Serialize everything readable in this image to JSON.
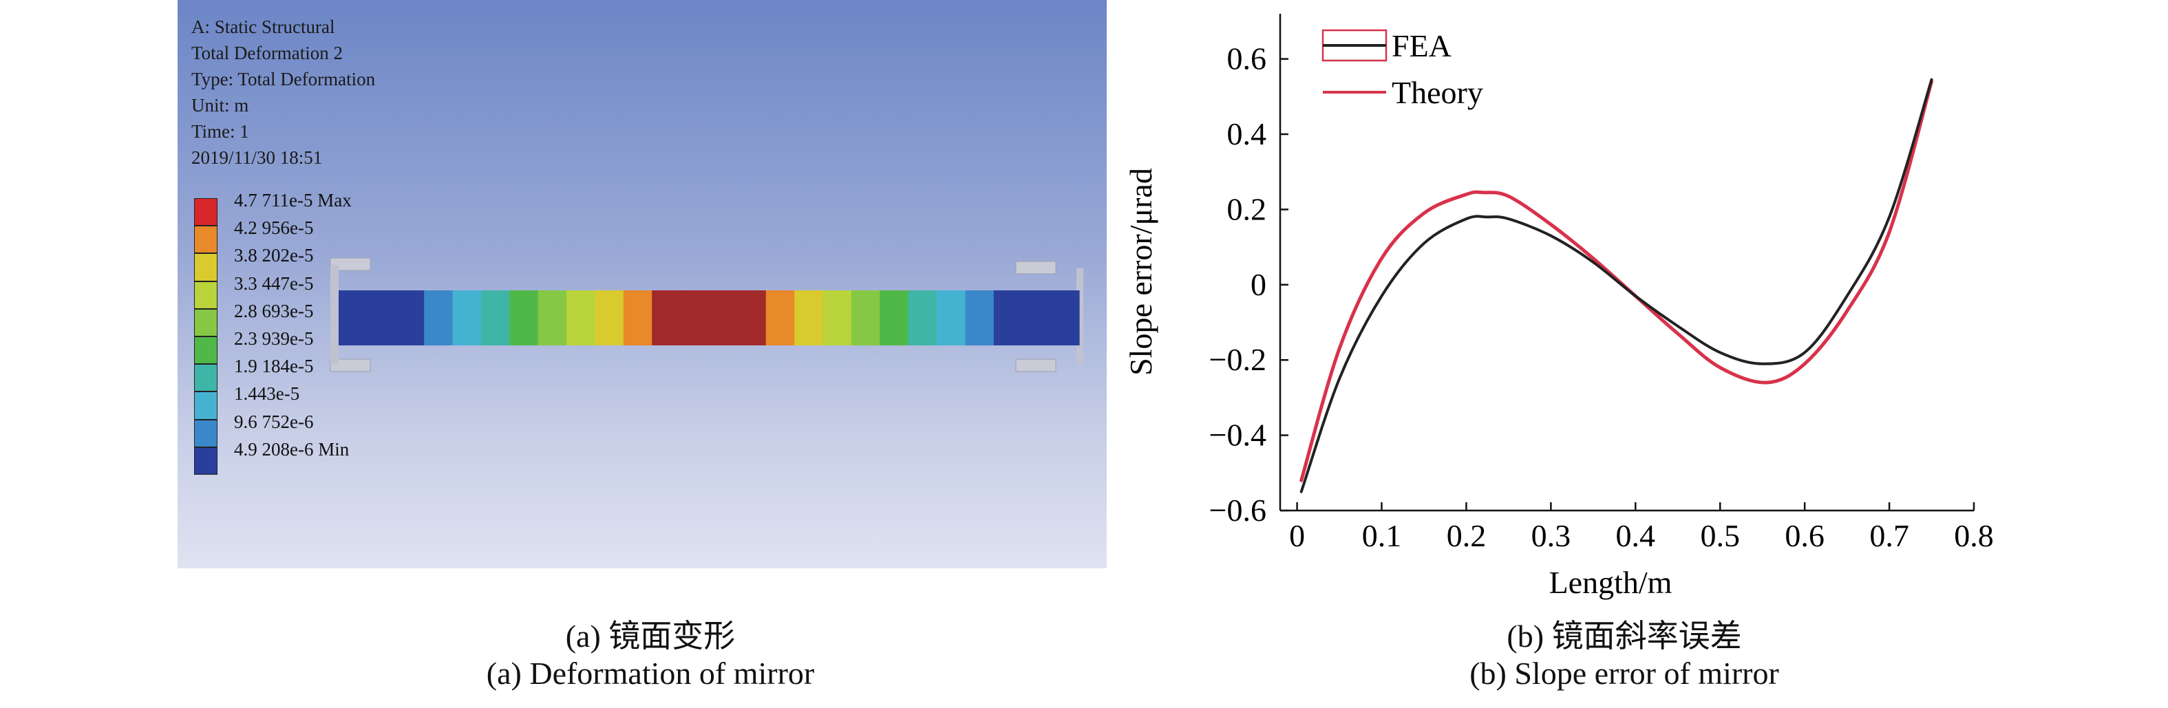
{
  "panel_a": {
    "info_lines": [
      "A: Static Structural",
      "Total Deformation 2",
      "Type: Total Deformation",
      "Unit: m",
      "Time: 1",
      "2019/11/30 18:51"
    ],
    "legend": [
      {
        "label": "4.7 711e-5 Max",
        "color": "#d8262b"
      },
      {
        "label": "4.2 956e-5",
        "color": "#e8892a"
      },
      {
        "label": "3.8 202e-5",
        "color": "#d9cb2e"
      },
      {
        "label": "3.3 447e-5",
        "color": "#b8d43a"
      },
      {
        "label": "2.8 693e-5",
        "color": "#86c843"
      },
      {
        "label": "2.3 939e-5",
        "color": "#4fb848"
      },
      {
        "label": "1.9 184e-5",
        "color": "#3fb5a8"
      },
      {
        "label": "1.443e-5",
        "color": "#46b2d2"
      },
      {
        "label": "9.6 752e-6",
        "color": "#3a88c9"
      },
      {
        "label": "4.9 208e-6 Min",
        "color": "#2a3f9c"
      }
    ],
    "beam_colors": [
      "#2a3f9c",
      "#2a3f9c",
      "#2a3f9c",
      "#3a88c9",
      "#46b2d2",
      "#3fb5a8",
      "#4fb848",
      "#86c843",
      "#b8d43a",
      "#d9cb2e",
      "#e8892a",
      "#a32a2a",
      "#a32a2a",
      "#a32a2a",
      "#a32a2a",
      "#e8892a",
      "#d9cb2e",
      "#b8d43a",
      "#86c843",
      "#4fb848",
      "#3fb5a8",
      "#46b2d2",
      "#3a88c9",
      "#2a3f9c",
      "#2a3f9c",
      "#2a3f9c"
    ]
  },
  "chart_data": {
    "type": "line",
    "xlabel": "Length/m",
    "ylabel": "Slope error/μrad",
    "xlim": [
      -0.02,
      0.8
    ],
    "ylim": [
      -0.6,
      0.72
    ],
    "xticks": [
      0,
      0.1,
      0.2,
      0.3,
      0.4,
      0.5,
      0.6,
      0.7,
      0.8
    ],
    "xtick_labels": [
      "0",
      "0.1",
      "0.2",
      "0.3",
      "0.4",
      "0.5",
      "0.6",
      "0.7",
      "0.8"
    ],
    "yticks": [
      0.6,
      0.4,
      0.2,
      0,
      -0.2,
      -0.4,
      -0.6
    ],
    "ytick_labels": [
      "0.6",
      "0.4",
      "0.2",
      "0",
      "−0.2",
      "−0.4",
      "−0.6"
    ],
    "legend_position": "top-left",
    "series": [
      {
        "name": "FEA",
        "color": "#222222",
        "x": [
          0.005,
          0.05,
          0.1,
          0.15,
          0.2,
          0.225,
          0.25,
          0.3,
          0.35,
          0.4,
          0.45,
          0.5,
          0.55,
          0.6,
          0.65,
          0.7,
          0.75
        ],
        "y": [
          -0.55,
          -0.25,
          -0.03,
          0.11,
          0.175,
          0.18,
          0.175,
          0.13,
          0.06,
          -0.03,
          -0.11,
          -0.18,
          -0.21,
          -0.18,
          -0.03,
          0.18,
          0.545
        ]
      },
      {
        "name": "Theory",
        "color": "#d8324a",
        "x": [
          0.005,
          0.05,
          0.1,
          0.15,
          0.2,
          0.22,
          0.25,
          0.3,
          0.35,
          0.4,
          0.45,
          0.5,
          0.555,
          0.6,
          0.65,
          0.7,
          0.75
        ],
        "y": [
          -0.52,
          -0.17,
          0.07,
          0.19,
          0.24,
          0.245,
          0.235,
          0.16,
          0.07,
          -0.03,
          -0.13,
          -0.22,
          -0.26,
          -0.21,
          -0.07,
          0.14,
          0.54
        ]
      }
    ]
  },
  "captions": {
    "a_cn": "(a) 镜面变形",
    "a_en": "(a) Deformation of mirror",
    "b_cn": "(b) 镜面斜率误差",
    "b_en": "(b) Slope error of mirror"
  }
}
